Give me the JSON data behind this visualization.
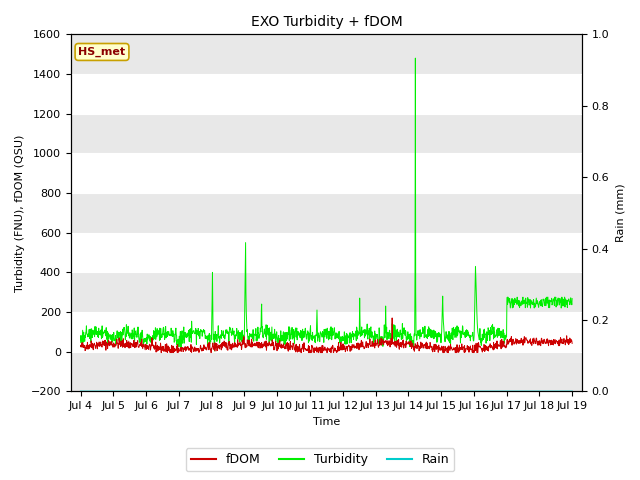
{
  "title": "EXO Turbidity + fDOM",
  "xlabel": "Time",
  "ylabel_left": "Turbidity (FNU), fDOM (QSU)",
  "ylabel_right": "Rain (mm)",
  "ylim_left": [
    -200,
    1600
  ],
  "ylim_right": [
    0.0,
    1.0
  ],
  "yticks_left": [
    -200,
    0,
    200,
    400,
    600,
    800,
    1000,
    1200,
    1400,
    1600
  ],
  "yticks_right": [
    0.0,
    0.2,
    0.4,
    0.6,
    0.8,
    1.0
  ],
  "xtick_labels": [
    "Jul 4",
    "Jul 5",
    "Jul 6",
    "Jul 7",
    "Jul 8",
    "Jul 9",
    "Jul 10",
    "Jul 11",
    "Jul 12",
    "Jul 13",
    "Jul 14",
    "Jul 15",
    "Jul 16",
    "Jul 17",
    "Jul 18",
    "Jul 19"
  ],
  "annotation_text": "HS_met",
  "annotation_color": "#8B0000",
  "annotation_bg": "#FFFFCC",
  "annotation_edge": "#C8A000",
  "fdom_color": "#CC0000",
  "turbidity_color": "#00EE00",
  "rain_color": "#00CCCC",
  "fig_bg": "#FFFFFF",
  "plot_bg": "#FFFFFF",
  "band_color": "#E8E8E8",
  "grid_color": "#CCCCCC",
  "legend_fdom": "fDOM",
  "legend_turbidity": "Turbidity",
  "legend_rain": "Rain"
}
